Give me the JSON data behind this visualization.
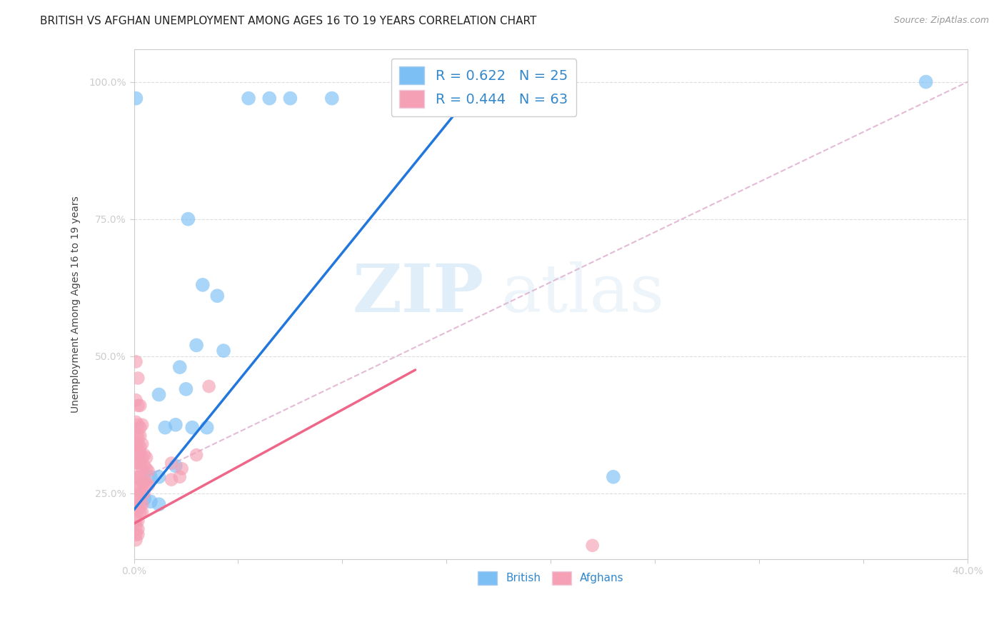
{
  "title": "BRITISH VS AFGHAN UNEMPLOYMENT AMONG AGES 16 TO 19 YEARS CORRELATION CHART",
  "source": "Source: ZipAtlas.com",
  "ylabel": "Unemployment Among Ages 16 to 19 years",
  "xlim": [
    0.0,
    0.4
  ],
  "ylim": [
    0.13,
    1.06
  ],
  "xticks": [
    0.0,
    0.05,
    0.1,
    0.15,
    0.2,
    0.25,
    0.3,
    0.35,
    0.4
  ],
  "yticks": [
    0.25,
    0.5,
    0.75,
    1.0
  ],
  "ytick_labels": [
    "25.0%",
    "50.0%",
    "75.0%",
    "100.0%"
  ],
  "xtick_labels_show": [
    "0.0%",
    "40.0%"
  ],
  "british_R": 0.622,
  "british_N": 25,
  "afghan_R": 0.444,
  "afghan_N": 63,
  "british_color": "#7bbff5",
  "afghan_color": "#f5a0b5",
  "british_line_color": "#2277dd",
  "afghan_line_color": "#ee6688",
  "diag_line_color": "#ddaacc",
  "background_color": "#ffffff",
  "grid_color": "#dddddd",
  "british_line": {
    "x0": 0.0,
    "y0": 0.22,
    "x1": 0.175,
    "y1": 1.04
  },
  "afghan_line": {
    "x0": 0.0,
    "y0": 0.195,
    "x1": 0.135,
    "y1": 0.475
  },
  "diag_line": {
    "x0": 0.0,
    "y0": 0.27,
    "x1": 0.4,
    "y1": 1.0
  },
  "british_pts": [
    [
      0.001,
      0.97
    ],
    [
      0.055,
      0.97
    ],
    [
      0.065,
      0.97
    ],
    [
      0.075,
      0.97
    ],
    [
      0.095,
      0.97
    ],
    [
      0.026,
      0.75
    ],
    [
      0.033,
      0.63
    ],
    [
      0.04,
      0.61
    ],
    [
      0.03,
      0.52
    ],
    [
      0.043,
      0.51
    ],
    [
      0.022,
      0.48
    ],
    [
      0.012,
      0.43
    ],
    [
      0.025,
      0.44
    ],
    [
      0.015,
      0.37
    ],
    [
      0.02,
      0.375
    ],
    [
      0.028,
      0.37
    ],
    [
      0.035,
      0.37
    ],
    [
      0.02,
      0.3
    ],
    [
      0.008,
      0.28
    ],
    [
      0.012,
      0.28
    ],
    [
      0.005,
      0.24
    ],
    [
      0.008,
      0.235
    ],
    [
      0.012,
      0.23
    ],
    [
      0.23,
      0.28
    ],
    [
      0.38,
      1.0
    ]
  ],
  "afghan_pts": [
    [
      0.001,
      0.49
    ],
    [
      0.002,
      0.46
    ],
    [
      0.001,
      0.42
    ],
    [
      0.002,
      0.41
    ],
    [
      0.003,
      0.41
    ],
    [
      0.001,
      0.38
    ],
    [
      0.002,
      0.375
    ],
    [
      0.003,
      0.37
    ],
    [
      0.004,
      0.375
    ],
    [
      0.001,
      0.355
    ],
    [
      0.002,
      0.355
    ],
    [
      0.003,
      0.355
    ],
    [
      0.001,
      0.34
    ],
    [
      0.002,
      0.34
    ],
    [
      0.003,
      0.335
    ],
    [
      0.004,
      0.34
    ],
    [
      0.001,
      0.325
    ],
    [
      0.002,
      0.325
    ],
    [
      0.003,
      0.325
    ],
    [
      0.004,
      0.315
    ],
    [
      0.005,
      0.32
    ],
    [
      0.006,
      0.315
    ],
    [
      0.001,
      0.305
    ],
    [
      0.002,
      0.305
    ],
    [
      0.003,
      0.305
    ],
    [
      0.004,
      0.295
    ],
    [
      0.005,
      0.3
    ],
    [
      0.006,
      0.295
    ],
    [
      0.007,
      0.29
    ],
    [
      0.001,
      0.28
    ],
    [
      0.002,
      0.28
    ],
    [
      0.003,
      0.28
    ],
    [
      0.004,
      0.27
    ],
    [
      0.005,
      0.27
    ],
    [
      0.006,
      0.27
    ],
    [
      0.007,
      0.265
    ],
    [
      0.001,
      0.26
    ],
    [
      0.002,
      0.26
    ],
    [
      0.003,
      0.25
    ],
    [
      0.004,
      0.25
    ],
    [
      0.005,
      0.25
    ],
    [
      0.001,
      0.24
    ],
    [
      0.002,
      0.24
    ],
    [
      0.003,
      0.23
    ],
    [
      0.004,
      0.23
    ],
    [
      0.001,
      0.22
    ],
    [
      0.002,
      0.22
    ],
    [
      0.003,
      0.215
    ],
    [
      0.004,
      0.215
    ],
    [
      0.001,
      0.2
    ],
    [
      0.002,
      0.2
    ],
    [
      0.001,
      0.19
    ],
    [
      0.002,
      0.185
    ],
    [
      0.001,
      0.175
    ],
    [
      0.002,
      0.175
    ],
    [
      0.001,
      0.165
    ],
    [
      0.018,
      0.305
    ],
    [
      0.023,
      0.295
    ],
    [
      0.03,
      0.32
    ],
    [
      0.018,
      0.275
    ],
    [
      0.022,
      0.28
    ],
    [
      0.036,
      0.445
    ],
    [
      0.22,
      0.155
    ]
  ],
  "watermark_zip": "ZIP",
  "watermark_atlas": "atlas",
  "legend_fontsize": 14,
  "title_fontsize": 11,
  "axis_label_fontsize": 10,
  "tick_fontsize": 10,
  "tick_color": "#5599cc",
  "label_color": "#444444"
}
